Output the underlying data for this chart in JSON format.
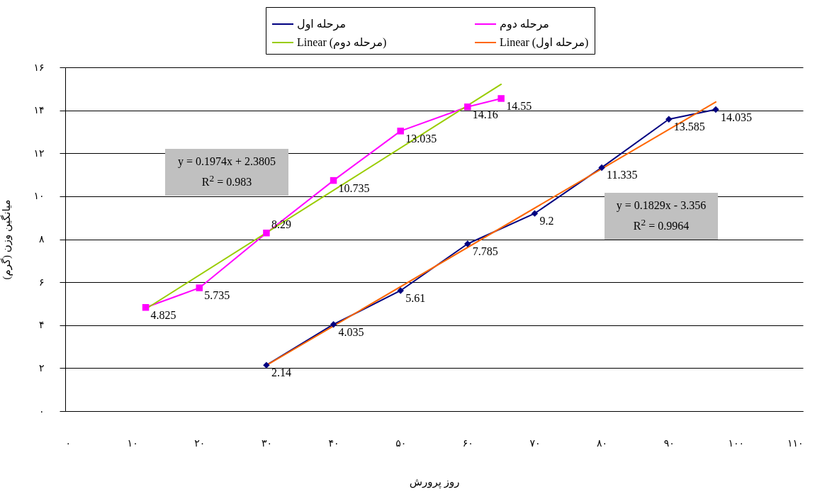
{
  "chart_data": {
    "type": "line",
    "xlabel": "روز پرورش",
    "ylabel": "میانگین وزن (گرم)",
    "xlim": [
      0,
      110
    ],
    "xticks": [
      {
        "value": 0,
        "label": "۰"
      },
      {
        "value": 10,
        "label": "۱۰"
      },
      {
        "value": 20,
        "label": "۲۰"
      },
      {
        "value": 30,
        "label": "۳۰"
      },
      {
        "value": 40,
        "label": "۴۰"
      },
      {
        "value": 50,
        "label": "۵۰"
      },
      {
        "value": 60,
        "label": "۶۰"
      },
      {
        "value": 70,
        "label": "۷۰"
      },
      {
        "value": 80,
        "label": "۸۰"
      },
      {
        "value": 90,
        "label": "۹۰"
      },
      {
        "value": 100,
        "label": "۱۰۰"
      },
      {
        "value": 110,
        "label": "۱۱۰"
      }
    ],
    "ylim": [
      0,
      16
    ],
    "yticks": [
      {
        "value": 0,
        "label": "۰"
      },
      {
        "value": 2,
        "label": "۲"
      },
      {
        "value": 4,
        "label": "۴"
      },
      {
        "value": 6,
        "label": "۶"
      },
      {
        "value": 8,
        "label": "۸"
      },
      {
        "value": 10,
        "label": "۱۰"
      },
      {
        "value": 12,
        "label": "۱۲"
      },
      {
        "value": 14,
        "label": "۱۴"
      },
      {
        "value": 16,
        "label": "۱۶"
      }
    ],
    "grid": "y",
    "legend": "top",
    "line_style": "solid",
    "series": [
      {
        "name": "مرحله اول",
        "color": "#000080",
        "marker": "diamond",
        "data_labels": true,
        "x": [
          30,
          40,
          50,
          60,
          70,
          80,
          90,
          97
        ],
        "values": [
          2.14,
          4.035,
          5.61,
          7.785,
          9.2,
          11.335,
          13.585,
          14.035
        ]
      },
      {
        "name": "مرحله دوم",
        "color": "#ff00ff",
        "marker": "square",
        "data_labels": true,
        "x": [
          12,
          20,
          30,
          40,
          50,
          60,
          65
        ],
        "values": [
          4.825,
          5.735,
          8.29,
          10.735,
          13.035,
          14.16,
          14.55
        ]
      },
      {
        "name": "Linear (مرحله دوم)",
        "color": "#99cc00",
        "x": [
          12,
          65
        ],
        "values": [
          4.75,
          15.21
        ]
      },
      {
        "name": "Linear (مرحله اول)",
        "color": "#ff6600",
        "x": [
          30,
          97
        ],
        "values": [
          2.13,
          14.39
        ]
      }
    ],
    "annotations": [
      "y = 0.1974x + 2.3805",
      "R$^{2}$ = 0.983",
      "y = 0.1829x - 3.356",
      "R$^{2}$ = 0.9964"
    ]
  }
}
